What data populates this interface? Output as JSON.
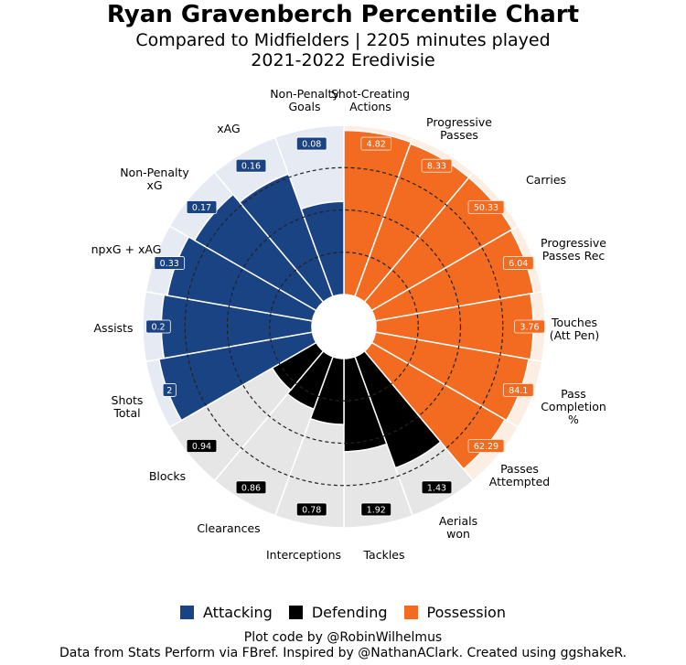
{
  "title": "Ryan Gravenberch Percentile Chart",
  "subtitle_1": "Compared to Midfielders | 2205 minutes played",
  "subtitle_2": "2021-2022 Eredivisie",
  "colors": {
    "Attacking": "#1A4384",
    "Defending": "#000000",
    "Possession": "#F26B21",
    "bg_Attacking": "#E6EBF3",
    "bg_Defending": "#E6E6E6",
    "bg_Possession": "#FDEEE4"
  },
  "legend": [
    {
      "label": "Attacking",
      "color": "#1A4384"
    },
    {
      "label": "Defending",
      "color": "#000000"
    },
    {
      "label": "Possession",
      "color": "#F26B21"
    }
  ],
  "footer_1": "Plot code by @RobinWilhelmus",
  "footer_2": "Data from Stats Perform via FBref. Inspired by @NathanAClark. Created using ggshakeR.",
  "chart_data": {
    "type": "polar-bar",
    "rlim": [
      0,
      100
    ],
    "grid": "dashed rings",
    "legend_position": "bottom",
    "params": [
      {
        "label": "Shot-Creating\nActions",
        "value": "4.82",
        "percentile": 97,
        "group": "Possession"
      },
      {
        "label": "Progressive\nPasses",
        "value": "8.33",
        "percentile": 96,
        "group": "Possession"
      },
      {
        "label": "Carries",
        "value": "50.33",
        "percentile": 96,
        "group": "Possession"
      },
      {
        "label": "Progressive\nPasses Rec",
        "value": "6.04",
        "percentile": 95,
        "group": "Possession"
      },
      {
        "label": "Touches\n(Att Pen)",
        "value": "3.76",
        "percentile": 93,
        "group": "Possession"
      },
      {
        "label": "Pass\nCompletion\n%",
        "value": "84.1",
        "percentile": 92,
        "group": "Possession"
      },
      {
        "label": "Passes\nAttempted",
        "value": "62.29",
        "percentile": 91,
        "group": "Possession"
      },
      {
        "label": "Aerials\nwon",
        "value": "1.43",
        "percentile": 70,
        "group": "Defending"
      },
      {
        "label": "Tackles",
        "value": "1.92",
        "percentile": 55,
        "group": "Defending"
      },
      {
        "label": "Interceptions",
        "value": "0.78",
        "percentile": 39,
        "group": "Defending"
      },
      {
        "label": "Clearances",
        "value": "0.86",
        "percentile": 33,
        "group": "Defending"
      },
      {
        "label": "Blocks",
        "value": "0.94",
        "percentile": 30,
        "group": "Defending"
      },
      {
        "label": "Shots\nTotal",
        "value": "2",
        "percentile": 92,
        "group": "Attacking"
      },
      {
        "label": "Assists",
        "value": "0.2",
        "percentile": 89,
        "group": "Attacking"
      },
      {
        "label": "npxG + xAG",
        "value": "0.33",
        "percentile": 87,
        "group": "Attacking"
      },
      {
        "label": "Non-Penalty\nxG",
        "value": "0.17",
        "percentile": 83,
        "group": "Attacking"
      },
      {
        "label": "xAG",
        "value": "0.16",
        "percentile": 77,
        "group": "Attacking"
      },
      {
        "label": "Non-Penalty\nGoals",
        "value": "0.08",
        "percentile": 55,
        "group": "Attacking"
      }
    ]
  }
}
